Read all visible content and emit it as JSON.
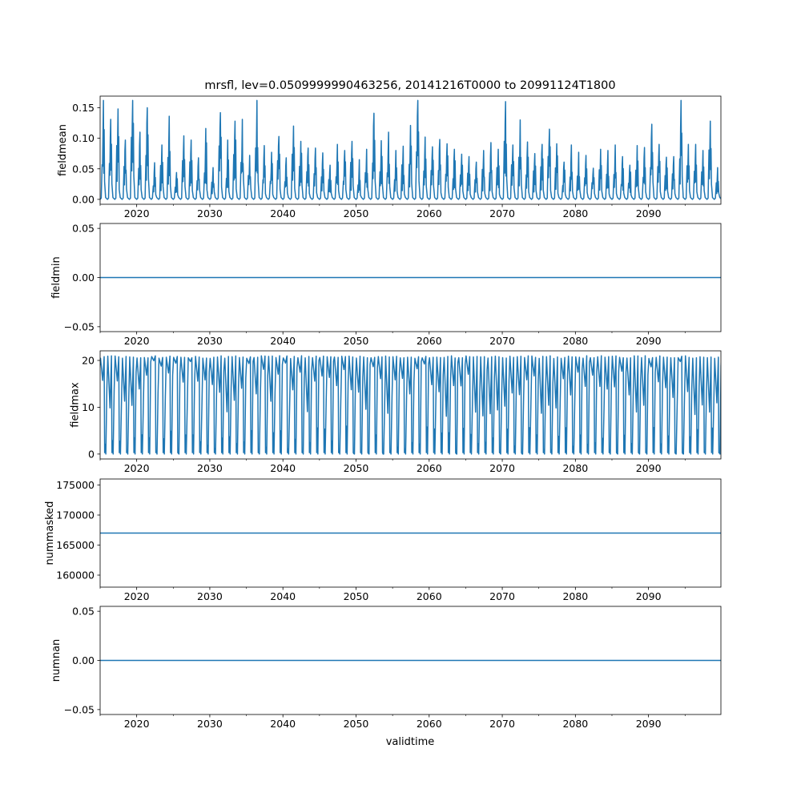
{
  "figure": {
    "title": "mrsfl, lev=0.0509999990463256, 20141216T0000 to 20991124T1800",
    "xlabel": "validtime"
  },
  "colors": {
    "line": "#1f77b4",
    "axis": "#000000",
    "background": "#ffffff"
  },
  "chart_data": [
    {
      "type": "line",
      "ylabel": "fieldmean",
      "xlim": [
        2015.0,
        2099.9
      ],
      "ylim": [
        -0.008,
        0.169
      ],
      "xticks": [
        2020,
        2030,
        2040,
        2050,
        2060,
        2070,
        2080,
        2090
      ],
      "xtick_labels": [
        "2020",
        "2030",
        "2040",
        "2050",
        "2060",
        "2070",
        "2080",
        "2090"
      ],
      "yticks": [
        0.0,
        0.05,
        0.1,
        0.15
      ],
      "ytick_labels": [
        "0.00",
        "0.05",
        "0.10",
        "0.15"
      ],
      "series": [
        {
          "name": "fieldmean",
          "pattern": "seasonal_spikes",
          "baseline": 0.0,
          "peaks": [
            0.162,
            0.131,
            0.148,
            0.097,
            0.162,
            0.11,
            0.15,
            0.06,
            0.089,
            0.136,
            0.044,
            0.104,
            0.097,
            0.068,
            0.116,
            0.052,
            0.142,
            0.097,
            0.128,
            0.131,
            0.072,
            0.162,
            0.088,
            0.077,
            0.103,
            0.068,
            0.12,
            0.095,
            0.084,
            0.084,
            0.076,
            0.056,
            0.09,
            0.08,
            0.095,
            0.065,
            0.082,
            0.141,
            0.096,
            0.11,
            0.08,
            0.087,
            0.121,
            0.162,
            0.102,
            0.086,
            0.098,
            0.091,
            0.082,
            0.074,
            0.07,
            0.061,
            0.08,
            0.093,
            0.082,
            0.16,
            0.089,
            0.13,
            0.094,
            0.075,
            0.09,
            0.115,
            0.091,
            0.061,
            0.089,
            0.077,
            0.072,
            0.051,
            0.082,
            0.08,
            0.089,
            0.07,
            0.056,
            0.088,
            0.085,
            0.123,
            0.09,
            0.069,
            0.07,
            0.162,
            0.09,
            0.09,
            0.08,
            0.128,
            0.052
          ]
        }
      ]
    },
    {
      "type": "line",
      "ylabel": "fieldmin",
      "xlim": [
        2015.0,
        2099.9
      ],
      "ylim": [
        -0.055,
        0.055
      ],
      "xticks": [
        2020,
        2030,
        2040,
        2050,
        2060,
        2070,
        2080,
        2090
      ],
      "xtick_labels": [
        "2020",
        "2030",
        "2040",
        "2050",
        "2060",
        "2070",
        "2080",
        "2090"
      ],
      "yticks": [
        -0.05,
        0.0,
        0.05
      ],
      "ytick_labels": [
        "−0.05",
        "0.00",
        "0.05"
      ],
      "series": [
        {
          "name": "fieldmin",
          "pattern": "constant",
          "value": 0.0
        }
      ]
    },
    {
      "type": "line",
      "ylabel": "fieldmax",
      "xlim": [
        2015.0,
        2099.9
      ],
      "ylim": [
        -1.05,
        22.05
      ],
      "xticks": [
        2020,
        2030,
        2040,
        2050,
        2060,
        2070,
        2080,
        2090
      ],
      "xtick_labels": [
        "2020",
        "2030",
        "2040",
        "2050",
        "2060",
        "2070",
        "2080",
        "2090"
      ],
      "yticks": [
        0,
        10,
        20
      ],
      "ytick_labels": [
        "0",
        "10",
        "20"
      ],
      "series": [
        {
          "name": "fieldmax",
          "pattern": "seasonal_oscillation",
          "low": 0.0,
          "high": 21.0
        }
      ]
    },
    {
      "type": "line",
      "ylabel": "nummasked",
      "xlim": [
        2015.0,
        2099.9
      ],
      "ylim": [
        158000,
        176000
      ],
      "xticks": [
        2020,
        2030,
        2040,
        2050,
        2060,
        2070,
        2080,
        2090
      ],
      "xtick_labels": [
        "2020",
        "2030",
        "2040",
        "2050",
        "2060",
        "2070",
        "2080",
        "2090"
      ],
      "yticks": [
        160000,
        165000,
        170000,
        175000
      ],
      "ytick_labels": [
        "160000",
        "165000",
        "170000",
        "175000"
      ],
      "series": [
        {
          "name": "nummasked",
          "pattern": "constant",
          "value": 167000
        }
      ]
    },
    {
      "type": "line",
      "ylabel": "numnan",
      "xlim": [
        2015.0,
        2099.9
      ],
      "ylim": [
        -0.055,
        0.055
      ],
      "xticks": [
        2020,
        2030,
        2040,
        2050,
        2060,
        2070,
        2080,
        2090
      ],
      "xtick_labels": [
        "2020",
        "2030",
        "2040",
        "2050",
        "2060",
        "2070",
        "2080",
        "2090"
      ],
      "yticks": [
        -0.05,
        0.0,
        0.05
      ],
      "ytick_labels": [
        "−0.05",
        "0.00",
        "0.05"
      ],
      "series": [
        {
          "name": "numnan",
          "pattern": "constant",
          "value": 0.0
        }
      ]
    }
  ]
}
